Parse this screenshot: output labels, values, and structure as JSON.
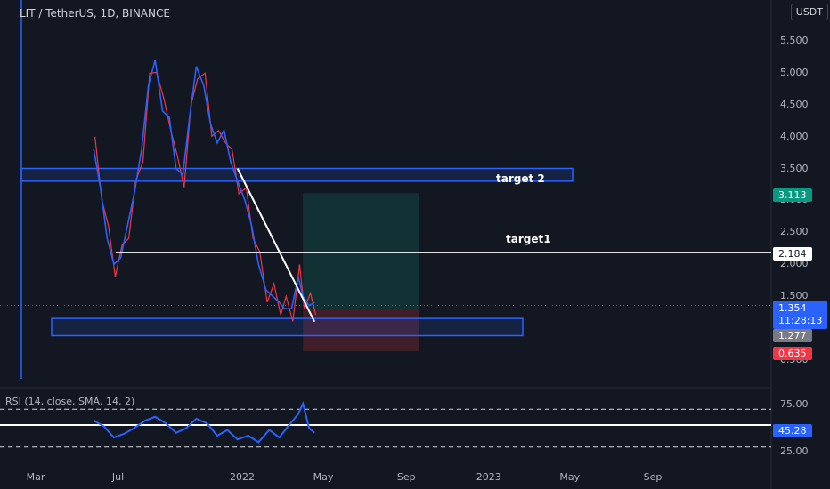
{
  "header": {
    "title": "LIT / TetherUS, 1D, BINANCE",
    "currency": "USDT"
  },
  "colors": {
    "bg": "#131722",
    "up": "#2962ff",
    "down": "#f23645",
    "accent": "#2962ff",
    "target_price": "#089981",
    "stop_price": "#f23645"
  },
  "chart_data": {
    "type": "line",
    "title": "LIT / TetherUS, 1D, BINANCE",
    "price_axis": {
      "ticks": [
        "5.500",
        "5.000",
        "4.500",
        "4.000",
        "3.500",
        "3.000",
        "2.500",
        "2.000",
        "1.500",
        "0.500"
      ],
      "tick_values": [
        5.5,
        5.0,
        4.5,
        4.0,
        3.5,
        3.0,
        2.5,
        2.0,
        1.5,
        0.5
      ],
      "ylim": [
        0.5,
        6.0
      ]
    },
    "time_axis": {
      "ticks": [
        "Mar",
        "Jul",
        "2022",
        "May",
        "Sep",
        "2023",
        "May",
        "Sep"
      ],
      "tick_dates": [
        "2021-03-01",
        "2021-07-01",
        "2022-01-01",
        "2022-05-01",
        "2022-09-01",
        "2023-01-01",
        "2023-05-01",
        "2023-09-01"
      ]
    },
    "price_series": {
      "name": "LIT / TetherUS",
      "dates": [
        "2021-05-26",
        "2021-06-05",
        "2021-06-15",
        "2021-06-25",
        "2021-07-05",
        "2021-07-15",
        "2021-07-25",
        "2021-08-05",
        "2021-08-15",
        "2021-08-25",
        "2021-09-05",
        "2021-09-15",
        "2021-09-25",
        "2021-10-05",
        "2021-10-15",
        "2021-10-25",
        "2021-11-05",
        "2021-11-15",
        "2021-11-25",
        "2021-12-05",
        "2021-12-15",
        "2021-12-25",
        "2022-01-05",
        "2022-01-15",
        "2022-01-25",
        "2022-02-05",
        "2022-02-15",
        "2022-02-25",
        "2022-03-05",
        "2022-03-15",
        "2022-03-25",
        "2022-04-01",
        "2022-04-10",
        "2022-04-18"
      ],
      "values": [
        3.8,
        3.2,
        2.4,
        2.0,
        2.1,
        2.6,
        3.1,
        3.8,
        4.8,
        5.2,
        4.4,
        4.3,
        3.5,
        3.4,
        4.3,
        5.1,
        4.8,
        4.2,
        3.9,
        4.1,
        3.6,
        3.3,
        3.0,
        2.6,
        2.0,
        1.6,
        1.5,
        1.4,
        1.3,
        1.3,
        1.8,
        1.5,
        1.35,
        1.4
      ]
    },
    "rsi": {
      "label": "RSI (14, close, SMA, 14, 2)",
      "ticks": [
        "75.00",
        "50.00",
        "25.00"
      ],
      "tick_values": [
        75,
        50,
        25
      ],
      "ylim": [
        15,
        85
      ],
      "last_value": "45.28",
      "dates": [
        "2021-05-26",
        "2021-06-10",
        "2021-06-25",
        "2021-07-10",
        "2021-07-25",
        "2021-08-10",
        "2021-08-25",
        "2021-09-10",
        "2021-09-25",
        "2021-10-10",
        "2021-10-25",
        "2021-11-10",
        "2021-11-25",
        "2021-12-10",
        "2021-12-25",
        "2022-01-10",
        "2022-01-25",
        "2022-02-10",
        "2022-02-25",
        "2022-03-10",
        "2022-03-25",
        "2022-04-01",
        "2022-04-10",
        "2022-04-18"
      ],
      "values": [
        58,
        52,
        40,
        44,
        50,
        58,
        62,
        55,
        45,
        50,
        60,
        55,
        42,
        48,
        38,
        42,
        35,
        48,
        40,
        52,
        65,
        76,
        50,
        45
      ]
    },
    "annotations": {
      "target2": {
        "label": "target 2",
        "zone": [
          3.3,
          3.5
        ]
      },
      "target1": {
        "label": "target1",
        "price": 2.184
      },
      "support_zone": [
        0.88,
        1.15
      ],
      "trendline": {
        "from": {
          "date": "2021-12-25",
          "price": 3.5
        },
        "to": {
          "date": "2022-04-18",
          "price": 1.1
        }
      },
      "position": {
        "start_date": "2022-04-01",
        "end_date": "2022-09-20",
        "entry": 1.277,
        "target": 3.113,
        "stop": 0.635
      }
    },
    "price_labels": {
      "target": "3.113",
      "target1": "2.184",
      "last": "1.354",
      "countdown": "11:28:13",
      "entry": "1.277",
      "stop": "0.635"
    }
  }
}
